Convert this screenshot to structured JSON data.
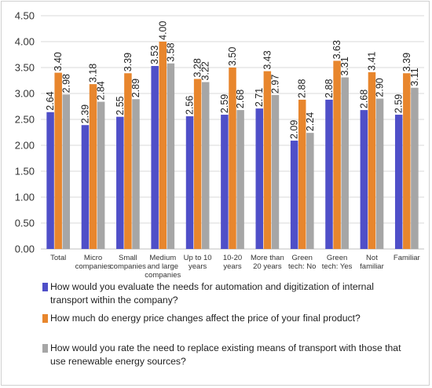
{
  "chart_data": {
    "type": "bar",
    "title": "",
    "xlabel": "",
    "ylabel": "",
    "ylim": [
      0,
      4.5
    ],
    "y_ticks": [
      "0.00",
      "0.50",
      "1.00",
      "1.50",
      "2.00",
      "2.50",
      "3.00",
      "3.50",
      "4.00",
      "4.50"
    ],
    "grid": true,
    "legend_position": "bottom",
    "categories": [
      [
        "Total"
      ],
      [
        "Micro",
        "companies"
      ],
      [
        "Small",
        "companies"
      ],
      [
        "Medium",
        "and large",
        "companies"
      ],
      [
        "Up to 10",
        "years"
      ],
      [
        "10-20",
        "years"
      ],
      [
        "More than",
        "20 years"
      ],
      [
        "Green",
        "tech: No"
      ],
      [
        "Green",
        "tech: Yes"
      ],
      [
        "Not",
        "familiar"
      ],
      [
        "Familiar"
      ]
    ],
    "series": [
      {
        "name": "How would you evaluate the needs for automation and digitization of internal transport within the company?",
        "color": "#4f4fc8",
        "values": [
          2.64,
          2.39,
          2.55,
          3.53,
          2.56,
          2.59,
          2.71,
          2.09,
          2.88,
          2.68,
          2.59
        ],
        "labels": [
          "2.64",
          "2.39",
          "2.55",
          "3.53",
          "2.56",
          "2.59",
          "2.71",
          "2.09",
          "2.88",
          "2.68",
          "2.59"
        ]
      },
      {
        "name": "How much do energy price changes affect the price of your final product?",
        "color": "#e8862d",
        "values": [
          3.4,
          3.18,
          3.39,
          4.0,
          3.28,
          3.5,
          3.43,
          2.88,
          3.63,
          3.41,
          3.39
        ],
        "labels": [
          "3.40",
          "3.18",
          "3.39",
          "4.00",
          "3.28",
          "3.50",
          "3.43",
          "2.88",
          "3.63",
          "3.41",
          "3.39"
        ]
      },
      {
        "name": "How would you rate the need to replace existing means of transport with those that use renewable energy sources?",
        "color": "#a6a6a6",
        "values": [
          2.98,
          2.84,
          2.89,
          3.58,
          3.22,
          2.68,
          2.97,
          2.24,
          3.31,
          2.9,
          3.11
        ],
        "labels": [
          "2.98",
          "2.84",
          "2.89",
          "3.58",
          "3.22",
          "2.68",
          "2.97",
          "2.24",
          "3.31",
          "2.90",
          "3.11"
        ]
      }
    ]
  }
}
